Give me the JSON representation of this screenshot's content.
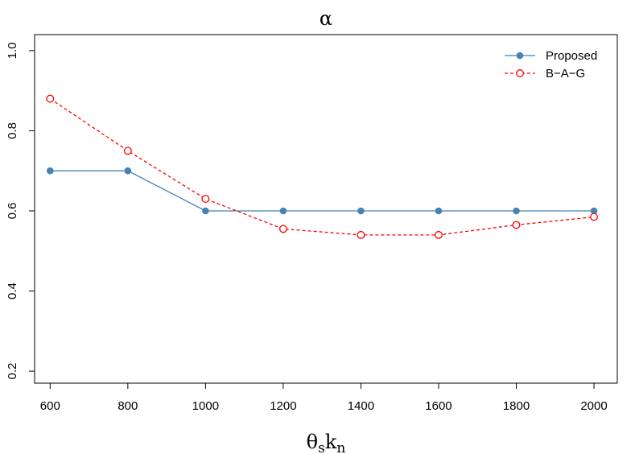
{
  "chart_data": {
    "type": "line",
    "title": "α",
    "xlabel": {
      "main": "θ",
      "sub1": "s",
      "mid": "k",
      "sub2": "n"
    },
    "ylabel": "",
    "x": [
      600,
      800,
      1000,
      1200,
      1400,
      1600,
      1800,
      2000
    ],
    "xlim": [
      560,
      2060
    ],
    "ylim": [
      0.17,
      1.04
    ],
    "xticks": [
      600,
      800,
      1000,
      1200,
      1400,
      1600,
      1800,
      2000
    ],
    "yticks": [
      0.2,
      0.4,
      0.6,
      0.8,
      1.0
    ],
    "ytick_labels": [
      "0.2",
      "0.4",
      "0.6",
      "0.8",
      "1.0"
    ],
    "grid": false,
    "legend_position": "top-right",
    "series": [
      {
        "name": "Proposed",
        "color": "#4682B4",
        "line": "solid",
        "marker": "filled-circle",
        "values": [
          0.7,
          0.7,
          0.6,
          0.6,
          0.6,
          0.6,
          0.6,
          0.6
        ]
      },
      {
        "name": "B−A−G",
        "color": "#FF0000",
        "line": "dashed",
        "marker": "open-circle",
        "values": [
          0.88,
          0.75,
          0.63,
          0.555,
          0.54,
          0.54,
          0.565,
          0.585
        ]
      }
    ]
  }
}
